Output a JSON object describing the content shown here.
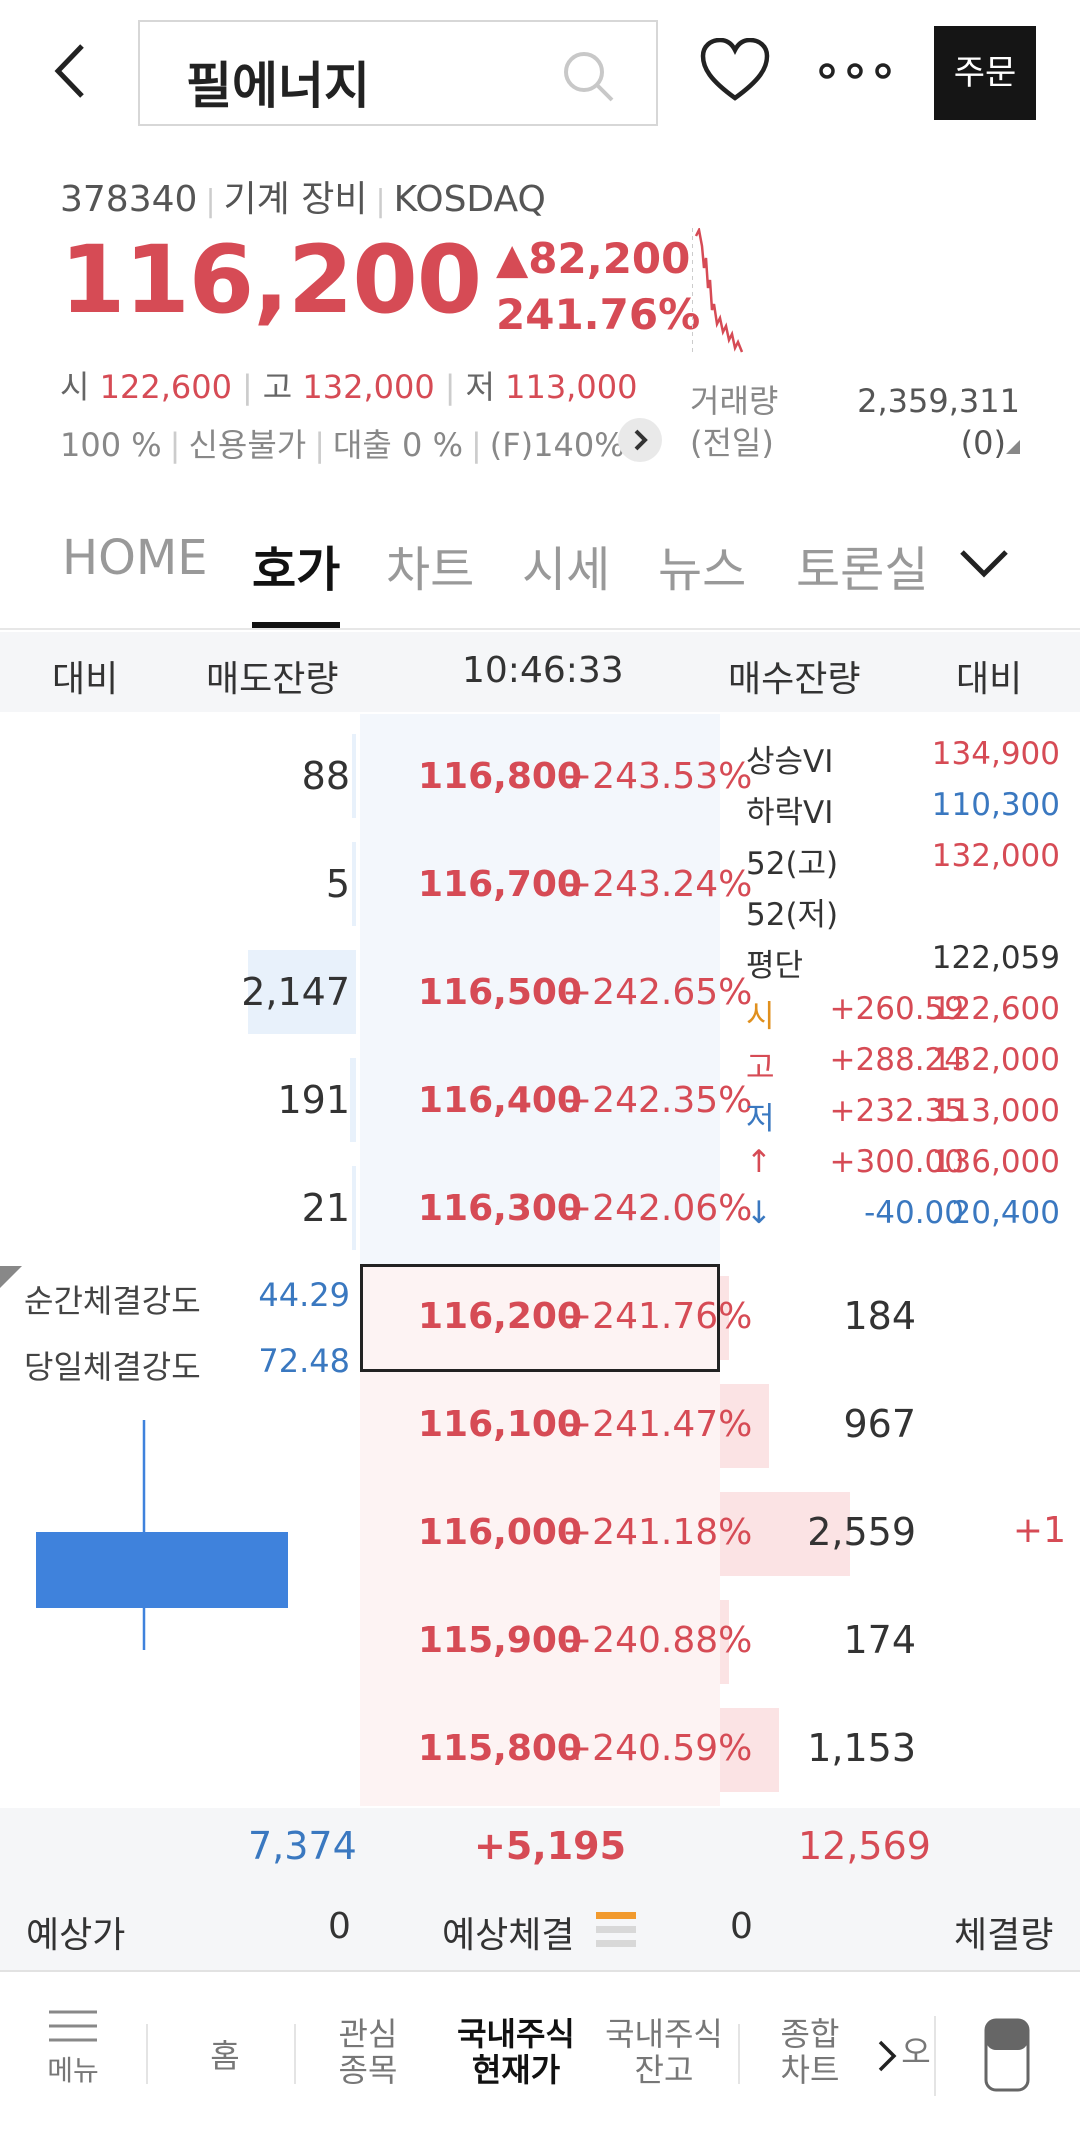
{
  "header": {
    "search_title": "필에너지",
    "order_label": "주문"
  },
  "stock": {
    "code": "378340",
    "sector": "기계 장비",
    "market": "KOSDAQ",
    "price": "116,200",
    "change": "▲82,200",
    "change_pct": "241.76%",
    "open_label": "시",
    "open": "122,600",
    "high_label": "고",
    "high": "132,000",
    "low_label": "저",
    "low": "113,000",
    "margin": "100 %",
    "credit": "신용불가",
    "loan": "대출 0 %",
    "f_rate": "(F)140%",
    "volume_label": "거래량",
    "prev_label": "(전일)",
    "volume": "2,359,311",
    "prev_volume": "(0)"
  },
  "tabs": [
    "HOME",
    "호가",
    "차트",
    "시세",
    "뉴스",
    "토론실"
  ],
  "orderbook_header": {
    "cmp_left": "대비",
    "ask_qty": "매도잔량",
    "time": "10:46:33",
    "bid_qty": "매수잔량",
    "cmp_right": "대비"
  },
  "asks": [
    {
      "qty": "88",
      "price": "116,800",
      "pct": "+243.53%",
      "ratio": 0.02
    },
    {
      "qty": "5",
      "price": "116,700",
      "pct": "+243.24%",
      "ratio": 0.0
    },
    {
      "qty": "2,147",
      "price": "116,500",
      "pct": "+242.65%",
      "ratio": 1.0
    },
    {
      "qty": "191",
      "price": "116,400",
      "pct": "+242.35%",
      "ratio": 0.06
    },
    {
      "qty": "21",
      "price": "116,300",
      "pct": "+242.06%",
      "ratio": 0.0
    }
  ],
  "bids": [
    {
      "price": "116,200",
      "pct": "+241.76%",
      "qty": "184",
      "cmp": "",
      "ratio": 0.07
    },
    {
      "price": "116,100",
      "pct": "+241.47%",
      "qty": "967",
      "cmp": "",
      "ratio": 0.38
    },
    {
      "price": "116,000",
      "pct": "+241.18%",
      "qty": "2,559",
      "cmp": "+1",
      "ratio": 1.0
    },
    {
      "price": "115,900",
      "pct": "+240.88%",
      "qty": "174",
      "cmp": "",
      "ratio": 0.07
    },
    {
      "price": "115,800",
      "pct": "+240.59%",
      "qty": "1,153",
      "cmp": "",
      "ratio": 0.45
    }
  ],
  "info_panel": [
    {
      "k": "상승VI",
      "m": "",
      "v": "134,900",
      "kc": "#333333",
      "vc": "#d64b55"
    },
    {
      "k": "하락VI",
      "m": "",
      "v": "110,300",
      "kc": "#333333",
      "vc": "#3a78c0"
    },
    {
      "k": "52(고)",
      "m": "",
      "v": "132,000",
      "kc": "#333333",
      "vc": "#d64b55"
    },
    {
      "k": "52(저)",
      "m": "",
      "v": "",
      "kc": "#333333",
      "vc": "#333333"
    },
    {
      "k": "평단",
      "m": "",
      "v": "122,059",
      "kc": "#333333",
      "vc": "#333333"
    },
    {
      "k": "시",
      "m": "+260.59",
      "v": "122,600",
      "kc": "#e0901e",
      "mc": "#d64b55",
      "vc": "#d64b55"
    },
    {
      "k": "고",
      "m": "+288.24",
      "v": "132,000",
      "kc": "#d64b55",
      "mc": "#d64b55",
      "vc": "#d64b55"
    },
    {
      "k": "저",
      "m": "+232.35",
      "v": "113,000",
      "kc": "#3a78c0",
      "mc": "#d64b55",
      "vc": "#d64b55"
    },
    {
      "k": "↑",
      "m": "+300.00",
      "v": "136,000",
      "kc": "#d64b55",
      "mc": "#d64b55",
      "vc": "#d64b55"
    },
    {
      "k": "↓",
      "m": "-40.00",
      "v": "20,400",
      "kc": "#3a78c0",
      "mc": "#3a78c0",
      "vc": "#3a78c0"
    }
  ],
  "strength": {
    "instant_label": "순간체결강도",
    "instant": "44.29",
    "daily_label": "당일체결강도",
    "daily": "72.48"
  },
  "totals": {
    "ask_total": "7,374",
    "diff": "+5,195",
    "bid_total": "12,569"
  },
  "expect": {
    "price_label": "예상가",
    "price": "0",
    "fill_label": "예상체결",
    "fill": "0",
    "volume_label": "체결량"
  },
  "bottom_nav": {
    "menu": "메뉴",
    "home": "홈",
    "watch1": "관심",
    "watch2": "종목",
    "cur1": "국내주식",
    "cur2": "현재가",
    "bal1": "국내주식",
    "bal2": "잔고",
    "chart1": "종합",
    "chart2": "차트",
    "clipped": "오"
  },
  "colors": {
    "up": "#d64b55",
    "down": "#3a78c0",
    "candle": "#3f82dc"
  }
}
